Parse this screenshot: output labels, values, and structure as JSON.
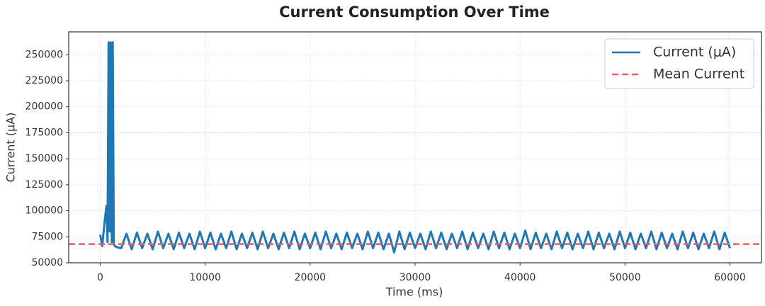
{
  "chart_data": {
    "type": "line",
    "title": "Current Consumption Over Time",
    "x_label": "Time (ms)",
    "y_label": "Current (μA)",
    "x": [
      0,
      200,
      400,
      600,
      700,
      800,
      900,
      1000,
      1100,
      1200,
      1300,
      1400,
      1600,
      2000,
      2500,
      3000,
      3500,
      4000,
      4500,
      5000,
      5500,
      6000,
      6500,
      7000,
      7500,
      8000,
      8500,
      9000,
      9500,
      10000,
      10500,
      11000,
      11500,
      12000,
      12500,
      13000,
      13500,
      14000,
      14500,
      15000,
      15500,
      16000,
      16500,
      17000,
      17500,
      18000,
      18500,
      19000,
      19500,
      20000,
      20500,
      21000,
      21500,
      22000,
      22500,
      23000,
      23500,
      24000,
      24500,
      25000,
      25500,
      26000,
      26500,
      27000,
      27500,
      28000,
      28500,
      29000,
      29500,
      30000,
      30500,
      31000,
      31500,
      32000,
      32500,
      33000,
      33500,
      34000,
      34500,
      35000,
      35500,
      36000,
      36500,
      37000,
      37500,
      38000,
      38500,
      39000,
      39500,
      40000,
      40500,
      41000,
      41500,
      42000,
      42500,
      43000,
      43500,
      44000,
      44500,
      45000,
      45500,
      46000,
      46500,
      47000,
      47500,
      48000,
      48500,
      49000,
      49500,
      50000,
      50500,
      51000,
      51500,
      52000,
      52500,
      53000,
      53500,
      54000,
      54500,
      55000,
      55500,
      56000,
      56500,
      57000,
      57500,
      58000,
      58500,
      59000,
      59500,
      60000
    ],
    "series": [
      {
        "name": "Current (μA)",
        "color": "#1f77b4",
        "values": [
          77000,
          66000,
          88000,
          105000,
          70000,
          262000,
          80000,
          262000,
          70000,
          262000,
          68000,
          66000,
          65000,
          64000,
          78000,
          63000,
          79000,
          64000,
          78000,
          63000,
          80000,
          64000,
          78000,
          63000,
          79000,
          64000,
          78000,
          63000,
          80000,
          64000,
          79000,
          63000,
          78000,
          64000,
          80000,
          63000,
          78000,
          64000,
          79000,
          63000,
          80000,
          64000,
          78000,
          63000,
          79000,
          64000,
          80000,
          63000,
          78000,
          64000,
          79000,
          63000,
          80000,
          64000,
          78000,
          63000,
          79000,
          64000,
          78000,
          63000,
          80000,
          64000,
          79000,
          63000,
          78000,
          60000,
          80000,
          63000,
          79000,
          64000,
          78000,
          63000,
          80000,
          64000,
          79000,
          63000,
          78000,
          64000,
          80000,
          63000,
          79000,
          64000,
          78000,
          63000,
          80000,
          64000,
          79000,
          63000,
          78000,
          64000,
          81000,
          63000,
          79000,
          64000,
          78000,
          63000,
          80000,
          64000,
          79000,
          63000,
          78000,
          64000,
          80000,
          63000,
          79000,
          64000,
          78000,
          63000,
          80000,
          64000,
          79000,
          63000,
          78000,
          64000,
          80000,
          63000,
          79000,
          64000,
          78000,
          63000,
          80000,
          64000,
          79000,
          63000,
          78000,
          64000,
          80000,
          63000,
          79000,
          64000
        ]
      }
    ],
    "mean_line": {
      "name": "Mean Current",
      "value": 68000,
      "color": "#f25c5c"
    },
    "xlim": [
      -3000,
      63000
    ],
    "ylim": [
      50000,
      272000
    ],
    "xticks": [
      0,
      10000,
      20000,
      30000,
      40000,
      50000,
      60000
    ],
    "yticks": [
      50000,
      75000,
      100000,
      125000,
      150000,
      175000,
      200000,
      225000,
      250000
    ],
    "grid": true,
    "legend": "upper right"
  }
}
